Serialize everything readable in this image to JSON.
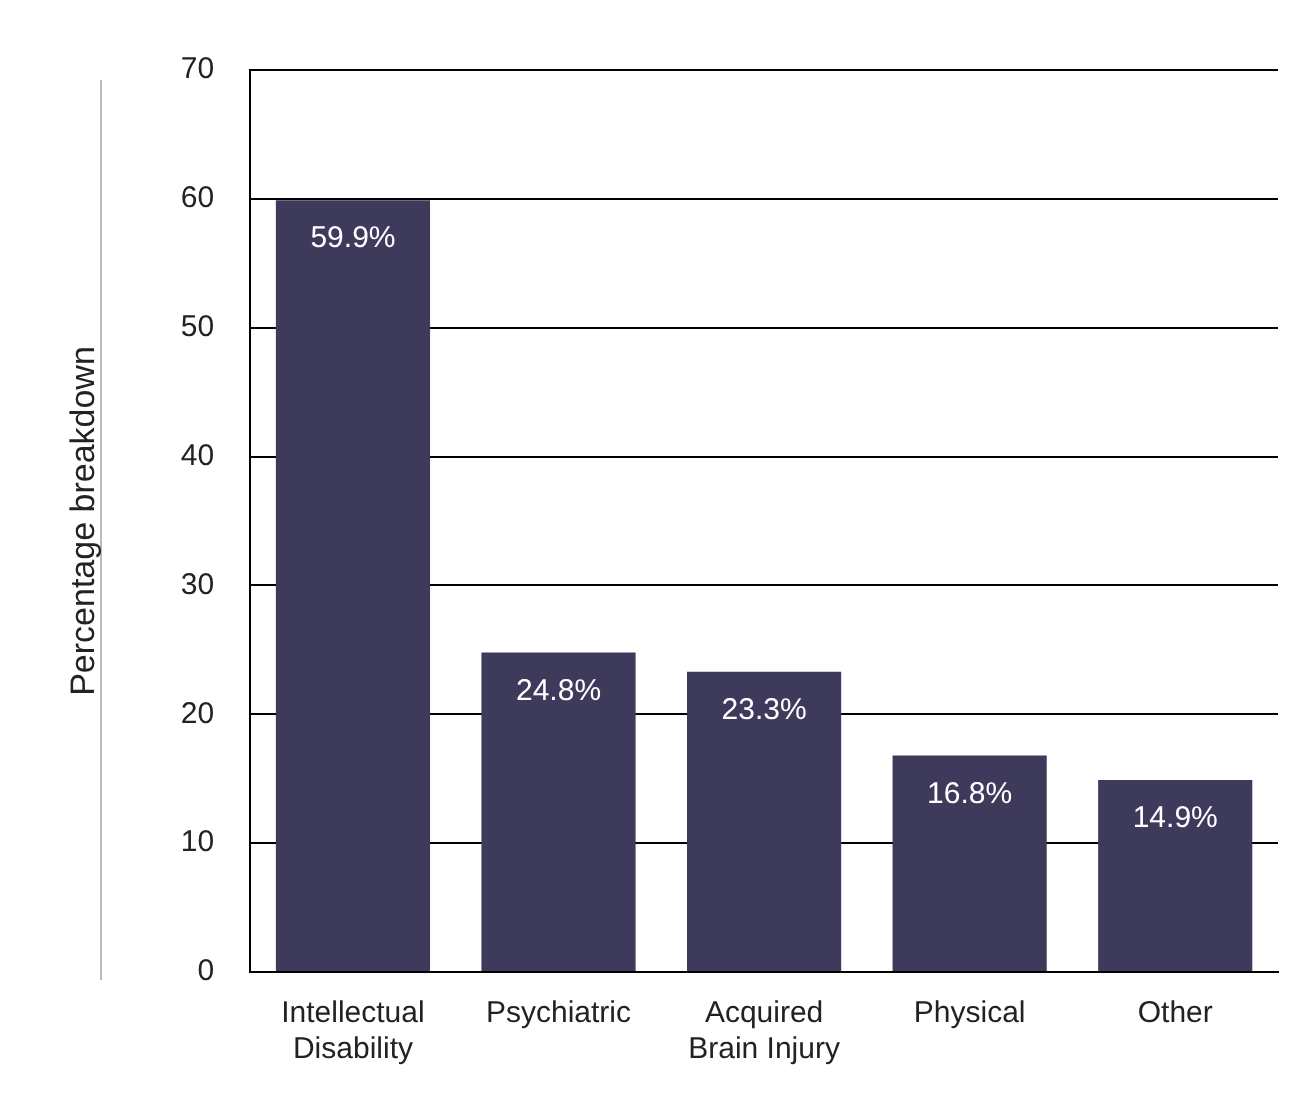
{
  "chart_data": {
    "type": "bar",
    "ylabel": "Percentage breakdown",
    "categories": [
      "Intellectual Disability",
      "Psychiatric",
      "Acquired Brain Injury",
      "Physical",
      "Other"
    ],
    "values": [
      59.9,
      24.8,
      23.3,
      16.8,
      14.9
    ],
    "value_labels": [
      "59.9%",
      "24.8%",
      "23.3%",
      "16.8%",
      "14.9%"
    ],
    "color": "#3d3a5c",
    "ylim": [
      0,
      70
    ],
    "yticks": [
      0,
      10,
      20,
      30,
      40,
      50,
      60,
      70
    ],
    "grid": "y",
    "legend": false
  }
}
